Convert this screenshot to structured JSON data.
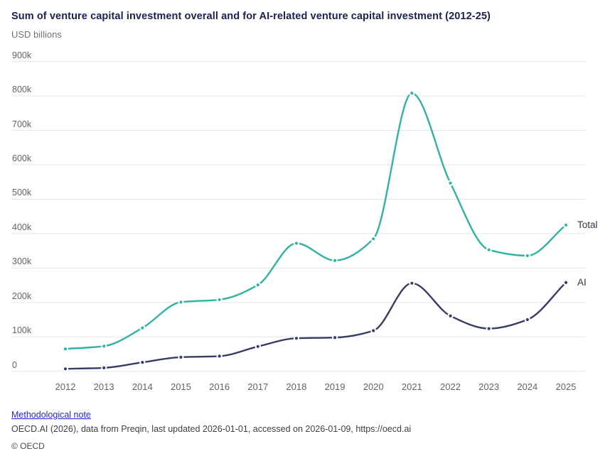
{
  "header": {
    "title": "Sum of venture capital investment overall and for AI-related venture capital investment (2012-25)",
    "subtitle": "USD billions"
  },
  "chart_data": {
    "type": "line",
    "title": "Sum of venture capital investment overall and for AI-related venture capital investment (2012-25)",
    "ylabel": "USD billions",
    "categories": [
      "2012",
      "2013",
      "2014",
      "2015",
      "2016",
      "2017",
      "2018",
      "2019",
      "2020",
      "2021",
      "2022",
      "2023",
      "2024",
      "2025"
    ],
    "series": [
      {
        "name": "Total",
        "color": "#2fb3a3",
        "values": [
          65,
          73,
          126,
          201,
          208,
          251,
          372,
          322,
          385,
          808,
          547,
          353,
          336,
          425
        ]
      },
      {
        "name": "AI",
        "color": "#363c63",
        "values": [
          7,
          10,
          26,
          41,
          44,
          72,
          96,
          98,
          118,
          256,
          161,
          124,
          150,
          258
        ]
      }
    ],
    "values_unit": "k (thousands of USD billions, as shown on axis)",
    "ylim": [
      0,
      900
    ],
    "ytick_step": 100,
    "ytick_suffix": "k",
    "yticks": [
      "0",
      "100k",
      "200k",
      "300k",
      "400k",
      "500k",
      "600k",
      "700k",
      "800k",
      "900k"
    ],
    "grid": "horizontal",
    "legend_position": "end-of-line-right",
    "marker": "dot"
  },
  "colors": {
    "title": "#1b2150",
    "tick_label": "#5d646e",
    "gridline": "#e3e5e9",
    "link": "#2525d6"
  },
  "footer": {
    "link_label": "Methodological note",
    "attribution": "OECD.AI (2026), data from Preqin, last updated 2026-01-01, accessed on 2026-01-09, https://oecd.ai",
    "copyright": "© OECD"
  }
}
